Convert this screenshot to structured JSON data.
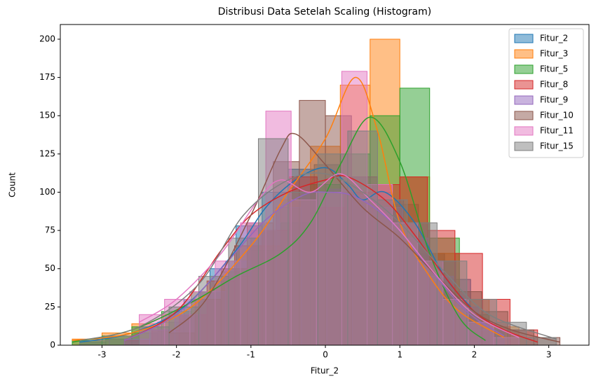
{
  "chart_data": {
    "type": "histogram",
    "title": "Distribusi Data Setelah Scaling (Histogram)",
    "x_label": "Fitur_2",
    "y_label": "Count",
    "xlim": [
      -3.56,
      3.54
    ],
    "ylim": [
      0,
      209.6
    ],
    "xticks": [
      -3,
      -2,
      -1,
      0,
      1,
      2,
      3
    ],
    "yticks": [
      0,
      25,
      50,
      75,
      100,
      125,
      150,
      175,
      200
    ],
    "legend": "upper right",
    "series": [
      {
        "name": "Fitur_2",
        "color": "#1f77b4",
        "bins": [
          -3.3,
          -2.95,
          -2.6,
          -2.25,
          -1.9,
          -1.55,
          -1.2,
          -0.85,
          -0.5,
          -0.15,
          0.2,
          0.55,
          0.9,
          1.25,
          1.6,
          1.95
        ],
        "values": [
          2,
          4,
          8,
          15,
          30,
          50,
          78,
          100,
          115,
          118,
          110,
          100,
          92,
          60,
          43
        ],
        "kde_x": [
          -3.3,
          -2.6,
          -1.9,
          -1.2,
          -0.8,
          -0.4,
          0,
          0.3,
          0.5,
          0.8,
          1.2,
          1.6,
          1.95
        ],
        "kde_y": [
          2,
          8,
          25,
          62,
          90,
          108,
          116,
          105,
          95,
          100,
          80,
          45,
          25
        ]
      },
      {
        "name": "Fitur_3",
        "color": "#ff7f0e",
        "bins": [
          -3.4,
          -3.0,
          -2.6,
          -2.2,
          -1.8,
          -1.4,
          -1.0,
          -0.6,
          -0.2,
          0.2,
          0.6,
          1.0,
          1.4,
          1.8,
          2.2,
          2.6
        ],
        "values": [
          4,
          8,
          14,
          20,
          30,
          45,
          65,
          95,
          130,
          170,
          200,
          110,
          60,
          30,
          12
        ],
        "kde_x": [
          -3.4,
          -2.6,
          -1.8,
          -1.0,
          -0.5,
          0,
          0.4,
          0.7,
          1.0,
          1.4,
          1.8,
          2.4
        ],
        "kde_y": [
          3,
          8,
          25,
          65,
          100,
          135,
          175,
          140,
          80,
          45,
          22,
          5
        ]
      },
      {
        "name": "Fitur_5",
        "color": "#2ca02c",
        "bins": [
          -3.4,
          -3.0,
          -2.6,
          -2.2,
          -1.8,
          -1.4,
          -1.0,
          -0.6,
          -0.2,
          0.2,
          0.6,
          1.0,
          1.4,
          1.8,
          2.2
        ],
        "values": [
          3,
          6,
          12,
          22,
          35,
          48,
          62,
          80,
          105,
          125,
          150,
          168,
          70,
          20
        ],
        "kde_x": [
          -3.4,
          -2.6,
          -1.8,
          -1.2,
          -0.6,
          -0.2,
          0.2,
          0.6,
          1.0,
          1.4,
          1.8,
          2.15
        ],
        "kde_y": [
          2,
          10,
          28,
          45,
          60,
          80,
          118,
          149,
          120,
          60,
          18,
          3
        ]
      },
      {
        "name": "Fitur_8",
        "color": "#d62728",
        "bins": [
          -2.7,
          -2.33,
          -1.96,
          -1.59,
          -1.22,
          -0.85,
          -0.48,
          -0.11,
          0.26,
          0.63,
          1.0,
          1.37,
          1.74,
          2.11,
          2.48,
          2.85
        ],
        "values": [
          3,
          10,
          20,
          42,
          65,
          75,
          110,
          90,
          100,
          105,
          110,
          75,
          60,
          30,
          10
        ],
        "kde_x": [
          -2.7,
          -2.0,
          -1.4,
          -1.0,
          -0.5,
          0,
          0.3,
          0.8,
          1.2,
          1.6,
          2.0,
          2.4,
          2.85
        ],
        "kde_y": [
          3,
          22,
          62,
          85,
          100,
          108,
          110,
          95,
          72,
          45,
          22,
          10,
          2
        ]
      },
      {
        "name": "Fitur_9",
        "color": "#9467bd",
        "bins": [
          -2.7,
          -2.36,
          -2.02,
          -1.68,
          -1.34,
          -1.0,
          -0.66,
          -0.32,
          0.02,
          0.36,
          0.7,
          1.04,
          1.38,
          1.72,
          2.06,
          2.4
        ],
        "values": [
          4,
          10,
          20,
          35,
          55,
          75,
          90,
          100,
          102,
          98,
          90,
          70,
          45,
          25,
          10
        ],
        "kde_x": [
          -2.7,
          -2.0,
          -1.4,
          -0.8,
          -0.3,
          0,
          0.4,
          0.9,
          1.4,
          1.9,
          2.4
        ],
        "kde_y": [
          3,
          20,
          50,
          82,
          98,
          100,
          97,
          80,
          50,
          22,
          6
        ]
      },
      {
        "name": "Fitur_10",
        "color": "#8c564b",
        "bins": [
          -2.1,
          -1.75,
          -1.4,
          -1.05,
          -0.7,
          -0.35,
          0.0,
          0.35,
          0.7,
          1.05,
          1.4,
          1.75,
          2.1,
          2.45,
          2.8,
          3.15
        ],
        "values": [
          8,
          30,
          50,
          80,
          120,
          160,
          150,
          110,
          95,
          80,
          55,
          35,
          22,
          10,
          5
        ],
        "kde_x": [
          -2.1,
          -1.6,
          -1.0,
          -0.6,
          -0.4,
          0,
          0.5,
          1.0,
          1.5,
          2.0,
          2.5,
          3.15
        ],
        "kde_y": [
          8,
          30,
          85,
          128,
          138,
          118,
          90,
          70,
          45,
          22,
          10,
          2
        ]
      },
      {
        "name": "Fitur_11",
        "color": "#e377c2",
        "bins": [
          -2.5,
          -2.16,
          -1.82,
          -1.48,
          -1.14,
          -0.8,
          -0.46,
          -0.12,
          0.22,
          0.56,
          0.9,
          1.24,
          1.58,
          1.92,
          2.26,
          2.6
        ],
        "values": [
          20,
          30,
          35,
          55,
          80,
          153,
          95,
          100,
          179,
          105,
          80,
          55,
          30,
          15,
          5
        ],
        "kde_x": [
          -2.5,
          -2.0,
          -1.4,
          -0.9,
          -0.6,
          -0.2,
          0.2,
          0.6,
          1.0,
          1.5,
          2.0,
          2.6
        ],
        "kde_y": [
          15,
          30,
          60,
          95,
          108,
          100,
          112,
          95,
          75,
          45,
          20,
          5
        ]
      },
      {
        "name": "Fitur_15",
        "color": "#7f7f7f",
        "bins": [
          -3.3,
          -2.9,
          -2.5,
          -2.1,
          -1.7,
          -1.3,
          -0.9,
          -0.5,
          -0.1,
          0.3,
          0.7,
          1.1,
          1.5,
          1.9,
          2.3,
          2.7,
          3.1
        ],
        "values": [
          3,
          6,
          12,
          25,
          45,
          70,
          135,
          100,
          125,
          140,
          95,
          80,
          55,
          30,
          15,
          5
        ],
        "kde_x": [
          -3.3,
          -2.5,
          -1.7,
          -1.1,
          -0.5,
          0,
          0.5,
          1.0,
          1.6,
          2.2,
          3.1
        ],
        "kde_y": [
          3,
          12,
          40,
          85,
          108,
          112,
          100,
          80,
          48,
          20,
          4
        ]
      }
    ]
  }
}
